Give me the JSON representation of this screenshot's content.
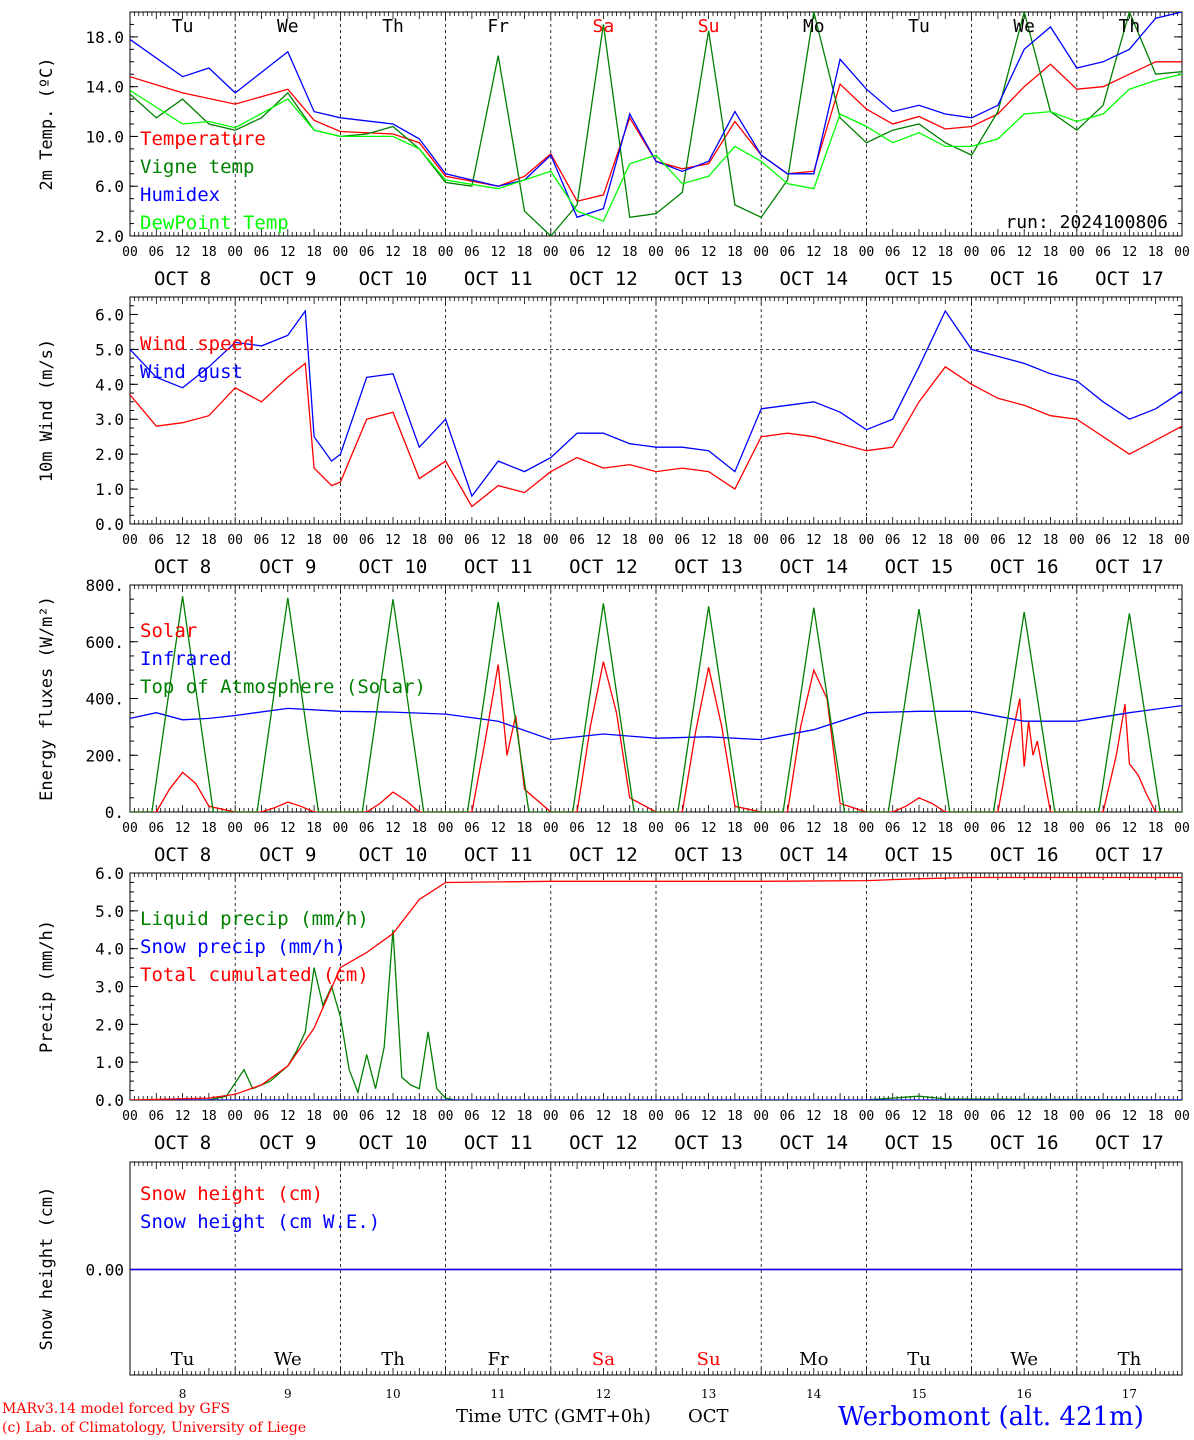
{
  "chart_data": [
    {
      "type": "line",
      "ylabel": "2m Temp. (ºC)",
      "ylim": [
        2,
        20
      ],
      "yticks": [
        "2.0",
        "6.0",
        "10.0",
        "14.0",
        "18.0"
      ],
      "ytick_values": [
        2,
        6,
        10,
        14,
        18
      ],
      "run_label": "run: 2024100806",
      "grid": true,
      "series": [
        {
          "name": "Temperature",
          "color": "#ff0000",
          "x": [
            0,
            12,
            24,
            36,
            42,
            48,
            60,
            66,
            72,
            84,
            90,
            96,
            102,
            108,
            114,
            120,
            126,
            132,
            138,
            144,
            150,
            156,
            162,
            168,
            174,
            180,
            186,
            192,
            198,
            204,
            210,
            216,
            222,
            228,
            234,
            240
          ],
          "y": [
            14.8,
            13.5,
            12.6,
            13.8,
            11.3,
            10.4,
            10.2,
            9.5,
            6.8,
            6.0,
            6.8,
            8.6,
            4.8,
            5.3,
            11.5,
            8.0,
            7.4,
            7.8,
            11.2,
            8.5,
            7.0,
            7.2,
            14.2,
            12.2,
            11.0,
            11.6,
            10.6,
            10.8,
            11.8,
            14.0,
            15.8,
            13.8,
            14.0,
            15.0,
            16.0,
            16.0
          ]
        },
        {
          "name": "Vigne temp",
          "color": "#008000",
          "x": [
            0,
            6,
            12,
            18,
            24,
            30,
            36,
            42,
            48,
            54,
            60,
            66,
            72,
            78,
            84,
            90,
            96,
            102,
            108,
            114,
            120,
            126,
            132,
            138,
            144,
            150,
            156,
            162,
            168,
            174,
            180,
            186,
            192,
            198,
            204,
            210,
            216,
            222,
            228,
            234,
            240
          ],
          "y": [
            13.4,
            11.5,
            13.0,
            11.0,
            10.5,
            11.5,
            13.5,
            10.5,
            10.0,
            10.2,
            10.8,
            9.0,
            6.3,
            6.0,
            16.5,
            4.0,
            2.0,
            4.5,
            19.0,
            3.5,
            3.8,
            5.5,
            18.5,
            4.5,
            3.5,
            6.5,
            20.0,
            11.5,
            9.5,
            10.5,
            11.0,
            9.5,
            8.5,
            12.0,
            20.0,
            12.0,
            10.5,
            12.5,
            20.0,
            15.0,
            15.2
          ]
        },
        {
          "name": "Humidex",
          "color": "#0000ff",
          "x": [
            0,
            12,
            18,
            24,
            36,
            42,
            48,
            60,
            66,
            72,
            84,
            90,
            96,
            102,
            108,
            114,
            120,
            126,
            132,
            138,
            144,
            150,
            156,
            162,
            168,
            174,
            180,
            186,
            192,
            198,
            204,
            210,
            216,
            222,
            228,
            234,
            240
          ],
          "y": [
            17.8,
            14.8,
            15.5,
            13.5,
            16.8,
            12.0,
            11.5,
            11.0,
            9.8,
            7.0,
            6.0,
            6.5,
            8.5,
            3.5,
            4.2,
            11.8,
            8.0,
            7.2,
            8.0,
            12.0,
            8.5,
            7.0,
            7.0,
            16.2,
            13.8,
            12.0,
            12.5,
            11.8,
            11.5,
            12.5,
            17.0,
            18.8,
            15.5,
            16.0,
            17.0,
            19.5,
            20.0
          ]
        },
        {
          "name": "DewPoint Temp",
          "color": "#00ff00",
          "x": [
            0,
            12,
            18,
            24,
            36,
            42,
            48,
            60,
            66,
            72,
            84,
            90,
            96,
            102,
            108,
            114,
            120,
            126,
            132,
            138,
            144,
            150,
            156,
            162,
            168,
            174,
            180,
            186,
            192,
            198,
            204,
            210,
            216,
            222,
            228,
            234,
            240
          ],
          "y": [
            13.7,
            11.0,
            11.2,
            10.7,
            13.0,
            10.5,
            10.0,
            10.0,
            9.0,
            6.5,
            5.8,
            6.5,
            7.2,
            4.0,
            3.2,
            7.8,
            8.5,
            6.2,
            6.8,
            9.2,
            8.0,
            6.2,
            5.8,
            11.8,
            10.8,
            9.5,
            10.3,
            9.2,
            9.2,
            9.8,
            11.8,
            12.0,
            11.2,
            11.8,
            13.8,
            14.5,
            15.0
          ]
        }
      ]
    },
    {
      "type": "line",
      "ylabel": "10m Wind (m/s)",
      "ylim": [
        0,
        6.5
      ],
      "yticks": [
        "0.0",
        "1.0",
        "2.0",
        "3.0",
        "4.0",
        "5.0",
        "6.0"
      ],
      "ytick_values": [
        0,
        1,
        2,
        3,
        4,
        5,
        6
      ],
      "ref_line": 5.0,
      "series": [
        {
          "name": "Wind speed",
          "color": "#ff0000",
          "x": [
            0,
            6,
            12,
            18,
            24,
            30,
            36,
            40,
            42,
            46,
            48,
            54,
            60,
            66,
            72,
            78,
            84,
            90,
            96,
            102,
            108,
            114,
            120,
            126,
            132,
            138,
            144,
            150,
            156,
            162,
            168,
            174,
            180,
            186,
            192,
            198,
            204,
            210,
            216,
            222,
            228,
            234,
            240
          ],
          "y": [
            3.7,
            2.8,
            2.9,
            3.1,
            3.9,
            3.5,
            4.2,
            4.6,
            1.6,
            1.1,
            1.2,
            3.0,
            3.2,
            1.3,
            1.8,
            0.5,
            1.1,
            0.9,
            1.5,
            1.9,
            1.6,
            1.7,
            1.5,
            1.6,
            1.5,
            1.0,
            2.5,
            2.6,
            2.5,
            2.3,
            2.1,
            2.2,
            3.5,
            4.5,
            4.0,
            3.6,
            3.4,
            3.1,
            3.0,
            2.5,
            2.0,
            2.4,
            2.8
          ]
        },
        {
          "name": "Wind gust",
          "color": "#0000ff",
          "x": [
            0,
            6,
            12,
            18,
            24,
            30,
            36,
            40,
            42,
            46,
            48,
            54,
            60,
            66,
            72,
            78,
            84,
            90,
            96,
            102,
            108,
            114,
            120,
            126,
            132,
            138,
            144,
            150,
            156,
            162,
            168,
            174,
            180,
            186,
            192,
            198,
            204,
            210,
            216,
            222,
            228,
            234,
            240
          ],
          "y": [
            5.0,
            4.2,
            3.9,
            4.5,
            5.2,
            5.1,
            5.4,
            6.1,
            2.5,
            1.8,
            2.0,
            4.2,
            4.3,
            2.2,
            3.0,
            0.8,
            1.8,
            1.5,
            1.9,
            2.6,
            2.6,
            2.3,
            2.2,
            2.2,
            2.1,
            1.5,
            3.3,
            3.4,
            3.5,
            3.2,
            2.7,
            3.0,
            4.5,
            6.1,
            5.0,
            4.8,
            4.6,
            4.3,
            4.1,
            3.5,
            3.0,
            3.3,
            3.8
          ]
        }
      ]
    },
    {
      "type": "line",
      "ylabel": "Energy fluxes (W/m²)",
      "ylim": [
        0,
        800
      ],
      "yticks": [
        "0.",
        "200.",
        "400.",
        "600.",
        "800."
      ],
      "ytick_values": [
        0,
        200,
        400,
        600,
        800
      ],
      "series": [
        {
          "name": "Solar",
          "color": "#ff0000",
          "x": [
            0,
            6,
            9,
            12,
            15,
            18,
            24,
            30,
            33,
            36,
            39,
            42,
            48,
            54,
            57,
            60,
            63,
            66,
            72,
            78,
            81,
            84,
            86,
            88,
            90,
            96,
            102,
            105,
            108,
            111,
            114,
            120,
            126,
            129,
            132,
            135,
            138,
            144,
            150,
            153,
            156,
            159,
            162,
            168,
            174,
            177,
            180,
            183,
            186,
            192,
            198,
            201,
            203,
            204,
            205,
            206,
            207,
            210,
            216,
            222,
            225,
            227,
            228,
            230,
            232,
            234,
            240
          ],
          "y": [
            0,
            0,
            80,
            140,
            100,
            20,
            0,
            0,
            15,
            35,
            20,
            0,
            0,
            0,
            30,
            70,
            40,
            0,
            0,
            0,
            250,
            520,
            200,
            340,
            80,
            0,
            0,
            300,
            530,
            350,
            50,
            0,
            0,
            280,
            510,
            300,
            20,
            0,
            0,
            300,
            500,
            400,
            30,
            0,
            0,
            20,
            50,
            30,
            0,
            0,
            0,
            250,
            400,
            160,
            320,
            200,
            250,
            0,
            0,
            0,
            200,
            380,
            170,
            130,
            60,
            0,
            0
          ]
        },
        {
          "name": "Infrared",
          "color": "#0000ff",
          "x": [
            0,
            6,
            12,
            18,
            24,
            36,
            48,
            60,
            72,
            84,
            96,
            108,
            120,
            132,
            144,
            156,
            168,
            180,
            192,
            204,
            216,
            228,
            240
          ],
          "y": [
            330,
            350,
            325,
            330,
            340,
            365,
            355,
            352,
            345,
            320,
            255,
            275,
            260,
            265,
            255,
            290,
            350,
            355,
            355,
            320,
            320,
            350,
            375
          ]
        },
        {
          "name": "Top of Atmosphere (Solar)",
          "color": "#008000",
          "x": [
            0,
            5,
            12,
            19,
            24,
            29,
            36,
            43,
            48,
            53,
            60,
            67,
            72,
            77,
            84,
            91,
            96,
            101,
            108,
            115,
            120,
            125,
            132,
            139,
            144,
            149,
            156,
            163,
            168,
            173,
            180,
            187,
            192,
            197,
            204,
            211,
            216,
            221,
            228,
            235,
            240
          ],
          "y": [
            0,
            0,
            760,
            0,
            0,
            0,
            755,
            0,
            0,
            0,
            750,
            0,
            0,
            0,
            740,
            0,
            0,
            0,
            735,
            0,
            0,
            0,
            725,
            0,
            0,
            0,
            720,
            0,
            0,
            0,
            715,
            0,
            0,
            0,
            705,
            0,
            0,
            0,
            700,
            0,
            0
          ]
        }
      ]
    },
    {
      "type": "line",
      "ylabel": "Precip (mm/h)",
      "ylim": [
        0,
        6
      ],
      "yticks": [
        "0.0",
        "1.0",
        "2.0",
        "3.0",
        "4.0",
        "5.0",
        "6.0"
      ],
      "ytick_values": [
        0,
        1,
        2,
        3,
        4,
        5,
        6
      ],
      "series": [
        {
          "name": "Liquid precip (mm/h)",
          "color": "#008000",
          "x": [
            0,
            18,
            22,
            26,
            28,
            32,
            36,
            38,
            40,
            42,
            44,
            46,
            48,
            50,
            52,
            54,
            56,
            58,
            60,
            62,
            64,
            66,
            68,
            70,
            72,
            74,
            168,
            174,
            180,
            186,
            240
          ],
          "y": [
            0,
            0,
            0.1,
            0.8,
            0.3,
            0.5,
            0.9,
            1.3,
            1.8,
            3.5,
            2.5,
            3.0,
            2.2,
            0.8,
            0.2,
            1.2,
            0.3,
            1.4,
            4.5,
            0.6,
            0.4,
            0.3,
            1.8,
            0.3,
            0.05,
            0,
            0,
            0.05,
            0.1,
            0.03,
            0
          ]
        },
        {
          "name": "Snow precip (mm/h)",
          "color": "#0000ff",
          "x": [
            0,
            240
          ],
          "y": [
            0,
            0
          ]
        },
        {
          "name": "Total cumulated (cm)",
          "color": "#ff0000",
          "x": [
            0,
            18,
            24,
            30,
            36,
            42,
            48,
            54,
            60,
            66,
            72,
            96,
            120,
            144,
            168,
            180,
            192,
            216,
            240
          ],
          "y": [
            0,
            0.05,
            0.15,
            0.4,
            0.9,
            1.9,
            3.5,
            3.9,
            4.4,
            5.3,
            5.75,
            5.78,
            5.78,
            5.78,
            5.8,
            5.85,
            5.88,
            5.88,
            5.88
          ]
        }
      ]
    },
    {
      "type": "line",
      "ylabel": "Snow height (cm)",
      "yticks": [
        "0.00"
      ],
      "ytick_values": [
        0
      ],
      "series": [
        {
          "name": "Snow height (cm)",
          "color": "#ff0000",
          "x": [
            0,
            240
          ],
          "y": [
            0,
            0
          ]
        },
        {
          "name": "Snow height (cm W.E.)",
          "color": "#0000ff",
          "x": [
            0,
            240
          ],
          "y": [
            0,
            0
          ]
        }
      ]
    }
  ],
  "xaxis": {
    "hours": [
      "00",
      "06",
      "12",
      "18"
    ],
    "end_hour": "00",
    "dates": [
      "OCT  8",
      "OCT  9",
      "OCT 10",
      "OCT 11",
      "OCT 12",
      "OCT 13",
      "OCT 14",
      "OCT 15",
      "OCT 16",
      "OCT 17"
    ],
    "weekdays": [
      "Tu",
      "We",
      "Th",
      "Fr",
      "Sa",
      "Su",
      "Mo",
      "Tu",
      "We",
      "Th"
    ],
    "weekend_color": "#ff0000",
    "weekend_index": [
      4,
      5
    ],
    "day_numbers": [
      "8",
      "9",
      "10",
      "11",
      "12",
      "13",
      "14",
      "15",
      "16",
      "17"
    ],
    "time_label": "Time UTC (GMT+0h)",
    "month_label": "OCT"
  },
  "footer": {
    "model_line": "MARv3.14 model forced by GFS",
    "credit_line": "(c) Lab. of Climatology, University of Liege",
    "location": "Werbomont (alt. 421m)"
  }
}
